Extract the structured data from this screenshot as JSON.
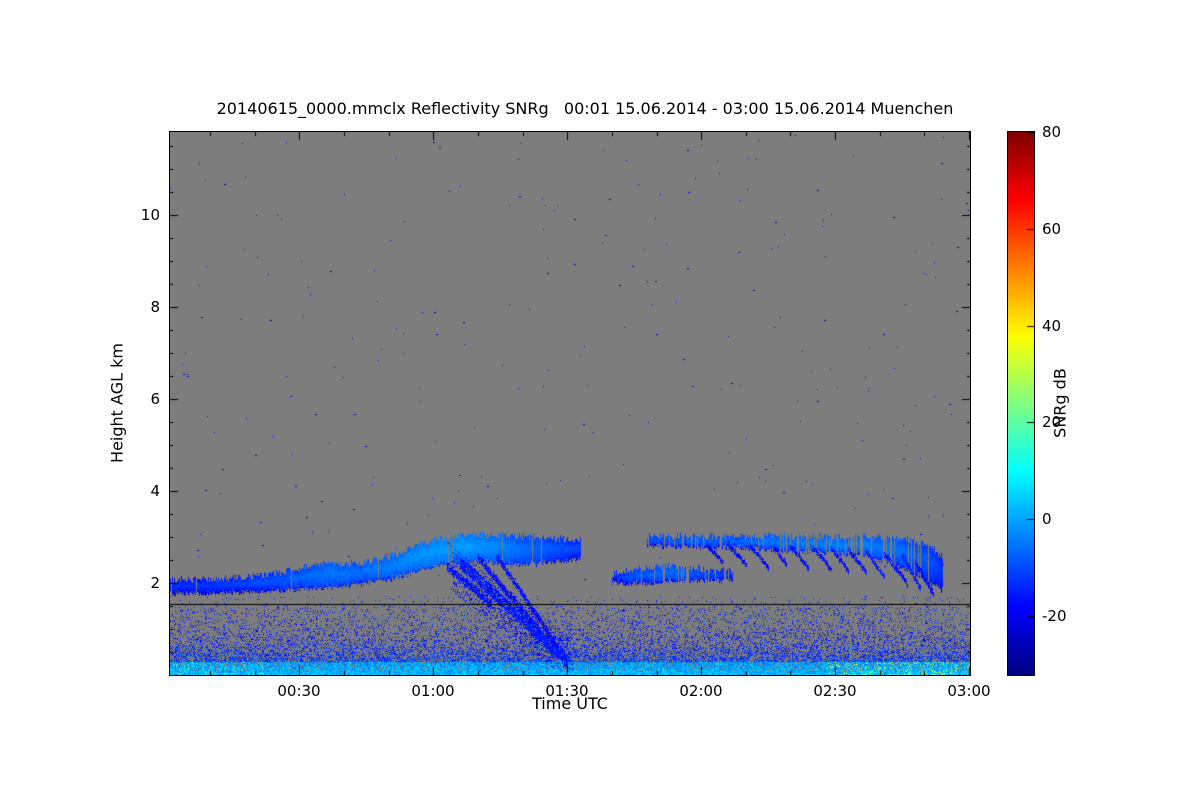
{
  "page": {
    "background": "#ffffff"
  },
  "chart_data": {
    "type": "heatmap",
    "title": "20140615_0000.mmclx Reflectivity SNRg   00:01 15.06.2014 - 03:00 15.06.2014 Muenchen",
    "xlabel": "Time UTC",
    "ylabel": "Height AGL km",
    "colorbar_label": "SNRg dB",
    "plot_background": "#7d7d7d",
    "grid": false,
    "legend": "none",
    "x_axis": {
      "start_minute": 1,
      "end_minute": 180,
      "tick_minutes": [
        30,
        60,
        90,
        120,
        150,
        180
      ],
      "tick_labels": [
        "00:30",
        "01:00",
        "01:30",
        "02:00",
        "02:30",
        "03:00"
      ],
      "minor_tick_step_minutes": 10
    },
    "y_axis": {
      "min_km": 0,
      "max_km": 11.8,
      "tick_values": [
        2,
        4,
        6,
        8,
        10
      ],
      "minor_tick_step_km": 0.5
    },
    "colorbar": {
      "min_db": -32,
      "max_db": 80,
      "tick_values": [
        80,
        60,
        40,
        20,
        0,
        -20
      ],
      "colormap": "jet"
    },
    "marker_line_km": 1.55,
    "speckle": {
      "count": 260,
      "min_db": -30,
      "max_db": -16
    },
    "boundary_layer": {
      "top_km": 1.5,
      "fade_top_km": 1.72,
      "bright_band_top_km": 0.3,
      "enhanced_after_minute": 148
    },
    "clouds": [
      {
        "name": "low-stratus-00:01-01:33",
        "gap_prob": 0.02,
        "keypoints": [
          [
            1,
            1.82,
            2.06,
            -17
          ],
          [
            10,
            1.84,
            2.08,
            -16
          ],
          [
            20,
            1.86,
            2.14,
            -14
          ],
          [
            28,
            1.9,
            2.28,
            -12
          ],
          [
            36,
            1.96,
            2.42,
            -9
          ],
          [
            43,
            2.02,
            2.42,
            -10
          ],
          [
            50,
            2.12,
            2.56,
            -8
          ],
          [
            56,
            2.3,
            2.8,
            -6
          ],
          [
            62,
            2.46,
            2.96,
            -5
          ],
          [
            68,
            2.52,
            3.04,
            -5
          ],
          [
            74,
            2.5,
            3.04,
            -7
          ],
          [
            80,
            2.44,
            3.0,
            -10
          ],
          [
            86,
            2.5,
            2.98,
            -12
          ],
          [
            93,
            2.6,
            2.92,
            -15
          ]
        ]
      },
      {
        "name": "thin-layer-01:40-02:07",
        "gap_prob": 0.15,
        "keypoints": [
          [
            100,
            2.06,
            2.2,
            -16
          ],
          [
            106,
            2.04,
            2.3,
            -12
          ],
          [
            113,
            2.08,
            2.36,
            -10
          ],
          [
            120,
            2.1,
            2.3,
            -13
          ],
          [
            127,
            2.12,
            2.26,
            -16
          ]
        ]
      },
      {
        "name": "broken-layer-01:47-02:54",
        "gap_prob": 0.22,
        "keypoints": [
          [
            107,
            2.86,
            3.02,
            -13
          ],
          [
            116,
            2.84,
            3.02,
            -11
          ],
          [
            126,
            2.82,
            3.0,
            -11
          ],
          [
            136,
            2.78,
            3.02,
            -9
          ],
          [
            146,
            2.72,
            3.0,
            -8
          ],
          [
            155,
            2.66,
            3.0,
            -8
          ],
          [
            161,
            2.52,
            2.98,
            -9
          ],
          [
            167,
            2.3,
            2.94,
            -11
          ],
          [
            171,
            2.05,
            2.82,
            -13
          ],
          [
            174,
            1.88,
            2.55,
            -16
          ]
        ]
      }
    ],
    "fall_streaks": [
      [
        63,
        2.35,
        73,
        1.55,
        0.16,
        -16
      ],
      [
        66,
        2.45,
        90,
        0.32,
        0.26,
        -15
      ],
      [
        70,
        2.55,
        84,
        0.95,
        0.14,
        -17
      ],
      [
        74,
        2.6,
        88,
        0.6,
        0.12,
        -17
      ],
      [
        121,
        2.84,
        125,
        2.45,
        0.08,
        -17
      ],
      [
        126,
        2.84,
        130,
        2.4,
        0.08,
        -17
      ],
      [
        131,
        2.82,
        135,
        2.35,
        0.08,
        -17
      ],
      [
        136,
        2.8,
        139,
        2.42,
        0.08,
        -18
      ],
      [
        140,
        2.8,
        144,
        2.35,
        0.08,
        -17
      ],
      [
        145,
        2.78,
        149,
        2.3,
        0.08,
        -17
      ],
      [
        149,
        2.76,
        153,
        2.28,
        0.08,
        -17
      ],
      [
        153,
        2.74,
        157,
        2.25,
        0.08,
        -17
      ],
      [
        157,
        2.7,
        161,
        2.15,
        0.09,
        -16
      ],
      [
        161,
        2.65,
        166,
        2.0,
        0.1,
        -16
      ],
      [
        165,
        2.6,
        169,
        1.9,
        0.1,
        -16
      ],
      [
        168,
        2.45,
        172,
        1.78,
        0.1,
        -17
      ]
    ],
    "streak_swath": {
      "m0": 64,
      "m1": 91,
      "h0": 2.3,
      "h1": 0.3,
      "spread_up": 0.5,
      "spread_down": 0.45,
      "density": 0.2,
      "value_db": -18
    }
  }
}
